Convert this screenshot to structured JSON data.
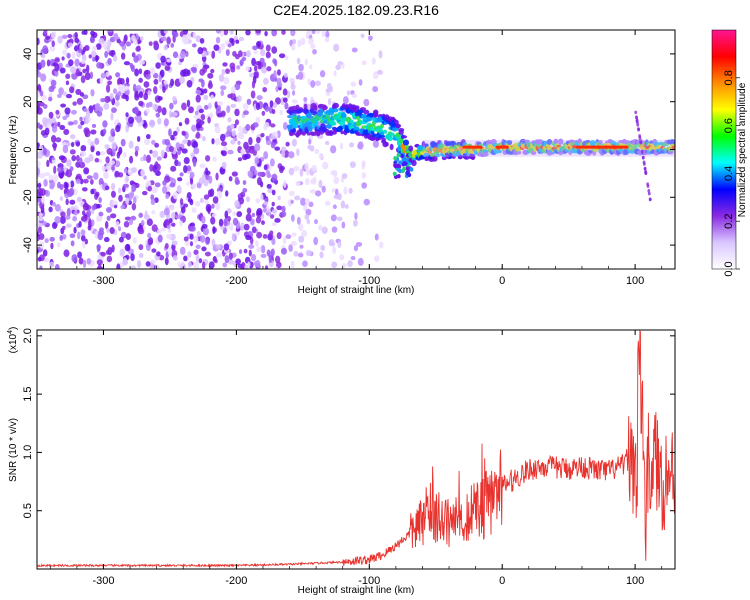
{
  "title": "C2E4.2025.182.09.23.R16",
  "chart_data": [
    {
      "type": "heatmap",
      "xlabel": "Height of straight line (km)",
      "ylabel": "Frequency (Hz)",
      "xlim": [
        -350,
        130
      ],
      "ylim": [
        -50,
        50
      ],
      "x_ticks": [
        -300,
        -200,
        -100,
        0,
        100
      ],
      "y_ticks": [
        -40,
        -20,
        0,
        20,
        40
      ],
      "colorbar": {
        "label": "Normalized spectral amplitude",
        "range": [
          0,
          1
        ],
        "ticks": [
          "0.0",
          "0.2",
          "0.4",
          "0.6",
          "0.8"
        ],
        "colors": [
          "#ffffff",
          "#d9c6ff",
          "#8a2be2",
          "#0000ff",
          "#00ffff",
          "#00ff00",
          "#ffff00",
          "#ff8c00",
          "#ff0000",
          "#ff1493"
        ]
      },
      "ridge": [
        {
          "x": -150,
          "y": 12
        },
        {
          "x": -120,
          "y": 13
        },
        {
          "x": -95,
          "y": 10
        },
        {
          "x": -80,
          "y": 6
        },
        {
          "x": -70,
          "y": -3
        },
        {
          "x": -60,
          "y": -1
        },
        {
          "x": -40,
          "y": 0
        },
        {
          "x": -20,
          "y": 0
        },
        {
          "x": 0,
          "y": 1
        },
        {
          "x": 50,
          "y": 1
        },
        {
          "x": 100,
          "y": 1
        },
        {
          "x": 130,
          "y": 1
        }
      ]
    },
    {
      "type": "line",
      "xlabel": "Height of straight line (km)",
      "ylabel": "SNR (10 * v/v)",
      "y_multiplier": "(x10",
      "y_multiplier_exp": "4",
      "y_multiplier_close": ")",
      "xlim": [
        -350,
        130
      ],
      "ylim": [
        0,
        2.05
      ],
      "x_ticks": [
        -300,
        -200,
        -100,
        0,
        100
      ],
      "y_ticks": [
        "0.5",
        "1.0",
        "1.5",
        "2.0"
      ],
      "series": [
        {
          "color": "#e8322d",
          "x": [
            -350,
            -300,
            -250,
            -200,
            -160,
            -140,
            -120,
            -100,
            -90,
            -80,
            -70,
            -60,
            -55,
            -50,
            -45,
            -40,
            -30,
            -20,
            -10,
            0,
            10,
            20,
            30,
            40,
            50,
            60,
            70,
            80,
            90,
            95,
            100,
            103,
            105,
            108,
            110,
            115,
            120,
            125,
            130
          ],
          "values": [
            0.03,
            0.03,
            0.03,
            0.03,
            0.04,
            0.05,
            0.06,
            0.08,
            0.12,
            0.2,
            0.3,
            0.4,
            0.6,
            0.45,
            0.4,
            0.4,
            0.42,
            0.5,
            0.58,
            0.7,
            0.78,
            0.85,
            0.88,
            0.87,
            0.86,
            0.88,
            0.85,
            0.84,
            0.88,
            0.95,
            0.9,
            0.6,
            1.6,
            0.4,
            0.9,
            0.95,
            0.75,
            0.82,
            0.8
          ]
        }
      ]
    }
  ]
}
